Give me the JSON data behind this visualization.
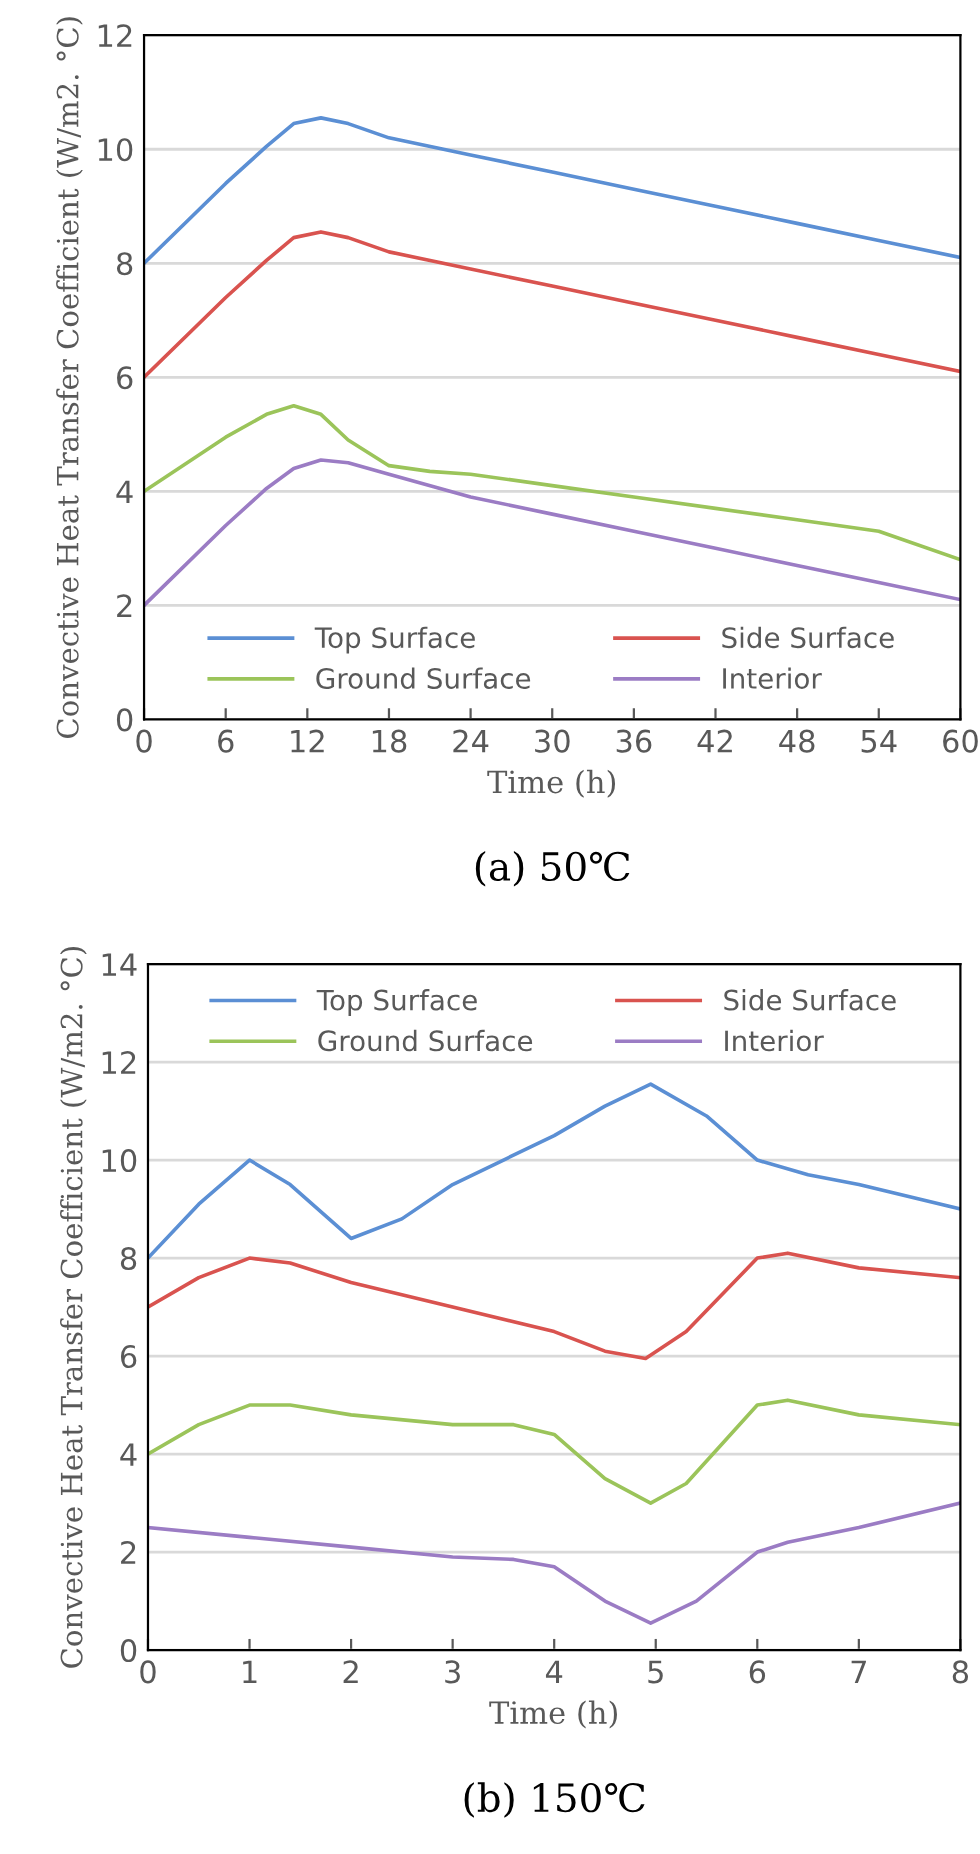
{
  "chart_data": [
    {
      "type": "line",
      "title": "(a) 50℃",
      "xlabel": "Time (h)",
      "ylabel": "Convective Heat Transfer Coefficient (W/m2. °C)",
      "xlim": [
        0,
        60
      ],
      "xticks": [
        0,
        6,
        12,
        18,
        24,
        30,
        36,
        42,
        48,
        54,
        60
      ],
      "ylim": [
        0,
        12
      ],
      "yticks": [
        0,
        2,
        4,
        6,
        8,
        10,
        12
      ],
      "grid": "y",
      "legend": "bottom",
      "marker": "none",
      "line_style": "solid",
      "series": [
        {
          "name": "Top Surface",
          "color": "#5b8fd4",
          "x": [
            0,
            6,
            9,
            11,
            13,
            15,
            18,
            24,
            30,
            36,
            42,
            48,
            54,
            60
          ],
          "values": [
            8,
            9.4,
            10.05,
            10.45,
            10.55,
            10.45,
            10.2,
            9.9,
            9.6,
            9.3,
            9.0,
            8.7,
            8.4,
            8.1
          ]
        },
        {
          "name": "Side Surface",
          "color": "#d9534f",
          "x": [
            0,
            6,
            9,
            11,
            13,
            15,
            18,
            24,
            30,
            36,
            42,
            48,
            54,
            60
          ],
          "values": [
            6,
            7.4,
            8.05,
            8.45,
            8.55,
            8.45,
            8.2,
            7.9,
            7.6,
            7.3,
            7.0,
            6.7,
            6.4,
            6.1
          ]
        },
        {
          "name": "Ground Surface",
          "color": "#9bc45a",
          "x": [
            0,
            6,
            9,
            11,
            13,
            15,
            18,
            21,
            24,
            30,
            36,
            42,
            48,
            54,
            60
          ],
          "values": [
            4,
            4.95,
            5.35,
            5.5,
            5.35,
            4.9,
            4.45,
            4.35,
            4.3,
            4.1,
            3.9,
            3.7,
            3.5,
            3.3,
            2.8
          ]
        },
        {
          "name": "Interior",
          "color": "#9b7cc4",
          "x": [
            0,
            6,
            9,
            11,
            13,
            15,
            18,
            24,
            30,
            36,
            42,
            48,
            54,
            60
          ],
          "values": [
            2,
            3.4,
            4.05,
            4.4,
            4.55,
            4.5,
            4.3,
            3.9,
            3.6,
            3.3,
            3.0,
            2.7,
            2.4,
            2.1
          ]
        }
      ]
    },
    {
      "type": "line",
      "title": "(b) 150℃",
      "xlabel": "Time (h)",
      "ylabel": "Convective Heat Transfer Coefficient (W/m2. °C)",
      "xlim": [
        0,
        8
      ],
      "xticks": [
        0,
        1,
        2,
        3,
        4,
        5,
        6,
        7,
        8
      ],
      "ylim": [
        0,
        14
      ],
      "yticks": [
        0,
        2,
        4,
        6,
        8,
        10,
        12,
        14
      ],
      "grid": "y",
      "legend": "top",
      "marker": "none",
      "line_style": "solid",
      "series": [
        {
          "name": "Top Surface",
          "color": "#5b8fd4",
          "x": [
            0,
            0.5,
            1,
            1.4,
            2,
            2.5,
            3,
            4,
            4.5,
            4.95,
            5.5,
            6,
            6.5,
            7,
            8
          ],
          "values": [
            8,
            9.1,
            10,
            9.5,
            8.4,
            8.8,
            9.5,
            10.5,
            11.1,
            11.55,
            10.9,
            10,
            9.7,
            9.5,
            9
          ]
        },
        {
          "name": "Side Surface",
          "color": "#d9534f",
          "x": [
            0,
            0.5,
            1,
            1.4,
            2,
            3,
            4,
            4.5,
            4.9,
            5.3,
            6,
            6.3,
            7,
            8
          ],
          "values": [
            7,
            7.6,
            8,
            7.9,
            7.5,
            7,
            6.5,
            6.1,
            5.95,
            6.5,
            8,
            8.1,
            7.8,
            7.6
          ]
        },
        {
          "name": "Ground Surface",
          "color": "#9bc45a",
          "x": [
            0,
            0.5,
            1,
            1.4,
            2,
            3,
            3.6,
            4,
            4.5,
            4.95,
            5.3,
            6,
            6.3,
            7,
            8
          ],
          "values": [
            4,
            4.6,
            5,
            5,
            4.8,
            4.6,
            4.6,
            4.4,
            3.5,
            3,
            3.4,
            5,
            5.1,
            4.8,
            4.6
          ]
        },
        {
          "name": "Interior",
          "color": "#9b7cc4",
          "x": [
            0,
            1,
            2,
            3,
            3.6,
            4,
            4.5,
            4.95,
            5.4,
            6,
            6.3,
            7,
            8
          ],
          "values": [
            2.5,
            2.3,
            2.1,
            1.9,
            1.85,
            1.7,
            1,
            0.55,
            1,
            2,
            2.2,
            2.5,
            3
          ]
        }
      ]
    }
  ]
}
